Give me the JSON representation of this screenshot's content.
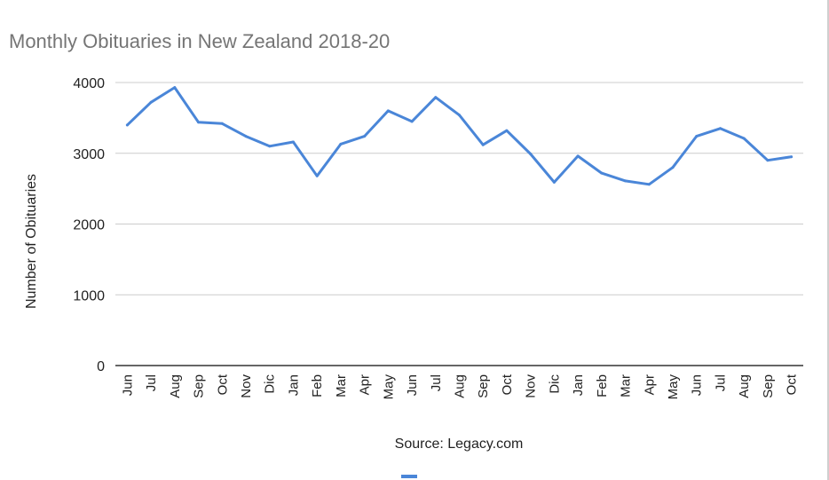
{
  "chart_data": {
    "type": "line",
    "title": "Monthly Obituaries in New Zealand 2018-20",
    "xlabel": "Source: Legacy.com",
    "ylabel": "Number of Obituaries",
    "ylim": [
      0,
      4000
    ],
    "yticks": [
      "0",
      "1000",
      "2000",
      "3000",
      "4000"
    ],
    "grid": true,
    "legend": "bottom",
    "colors": {
      "line": "#4a86d8",
      "grid": "#cccccc",
      "axis": "#333333",
      "title": "#757575"
    },
    "categories": [
      "Jun",
      "Jul",
      "Aug",
      "Sep",
      "Oct",
      "Nov",
      "Dic",
      "Jan",
      "Feb",
      "Mar",
      "Apr",
      "May",
      "Jun",
      "Jul",
      "Aug",
      "Sep",
      "Oct",
      "Nov",
      "Dic",
      "Jan",
      "Feb",
      "Mar",
      "Apr",
      "May",
      "Jun",
      "Jul",
      "Aug",
      "Sep",
      "Oct"
    ],
    "series": [
      {
        "values": [
          3400,
          3720,
          3930,
          3440,
          3420,
          3240,
          3100,
          3160,
          2680,
          3130,
          3240,
          3600,
          3450,
          3790,
          3540,
          3120,
          3320,
          2990,
          2590,
          2960,
          2720,
          2610,
          2560,
          2800,
          3240,
          3350,
          3210,
          2900,
          2950
        ]
      }
    ]
  }
}
